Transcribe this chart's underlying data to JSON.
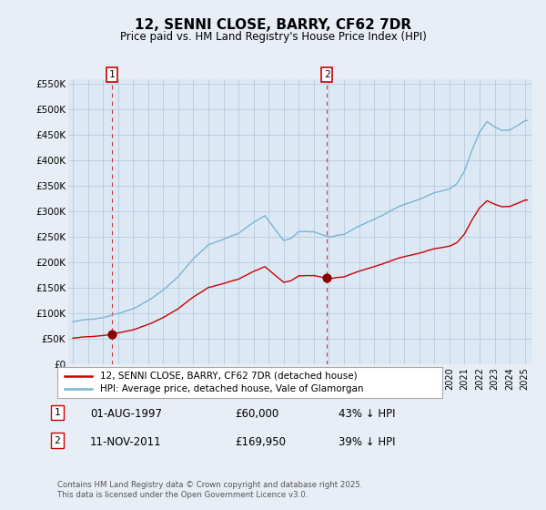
{
  "title": "12, SENNI CLOSE, BARRY, CF62 7DR",
  "subtitle": "Price paid vs. HM Land Registry's House Price Index (HPI)",
  "hpi_color": "#7ab3d4",
  "price_color": "#cc0000",
  "marker_color": "#8b0000",
  "dashed_line_color": "#cc3333",
  "plot_bg_color": "#dce9f5",
  "fig_bg_color": "#e8eef5",
  "grid_color": "#b0c4d8",
  "ylim": [
    0,
    560000
  ],
  "yticks": [
    0,
    50000,
    100000,
    150000,
    200000,
    250000,
    300000,
    350000,
    400000,
    450000,
    500000,
    550000
  ],
  "ytick_labels": [
    "£0",
    "£50K",
    "£100K",
    "£150K",
    "£200K",
    "£250K",
    "£300K",
    "£350K",
    "£400K",
    "£450K",
    "£500K",
    "£550K"
  ],
  "sale1_price": 60000,
  "sale1_label": "1",
  "sale1_year": 1997.58,
  "sale2_price": 169950,
  "sale2_label": "2",
  "sale2_year": 2011.86,
  "legend_label1": "12, SENNI CLOSE, BARRY, CF62 7DR (detached house)",
  "legend_label2": "HPI: Average price, detached house, Vale of Glamorgan",
  "footer": "Contains HM Land Registry data © Crown copyright and database right 2025.\nThis data is licensed under the Open Government Licence v3.0.",
  "xlim_left": 1994.7,
  "xlim_right": 2025.5
}
